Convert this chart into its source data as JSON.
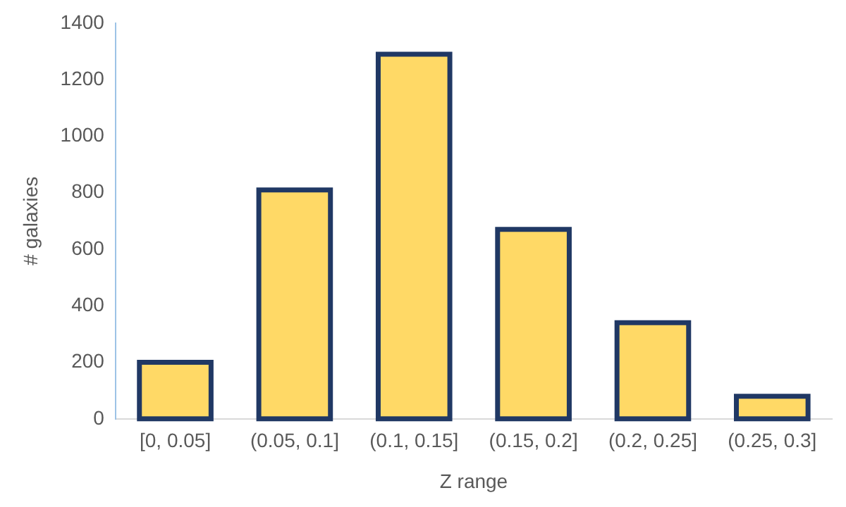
{
  "chart_data": {
    "type": "bar",
    "xlabel": "Z range",
    "ylabel": "# galaxies",
    "categories": [
      "[0, 0.05]",
      "(0.05, 0.1]",
      "(0.1, 0.15]",
      "(0.15, 0.2]",
      "(0.2, 0.25]",
      "(0.25, 0.3]"
    ],
    "values": [
      200,
      810,
      1290,
      670,
      340,
      80
    ],
    "color": "#ffd966",
    "ylim": [
      0,
      1400
    ],
    "yticks": [
      0,
      200,
      400,
      600,
      800,
      1000,
      1200,
      1400
    ],
    "grid": false,
    "legend": false
  }
}
